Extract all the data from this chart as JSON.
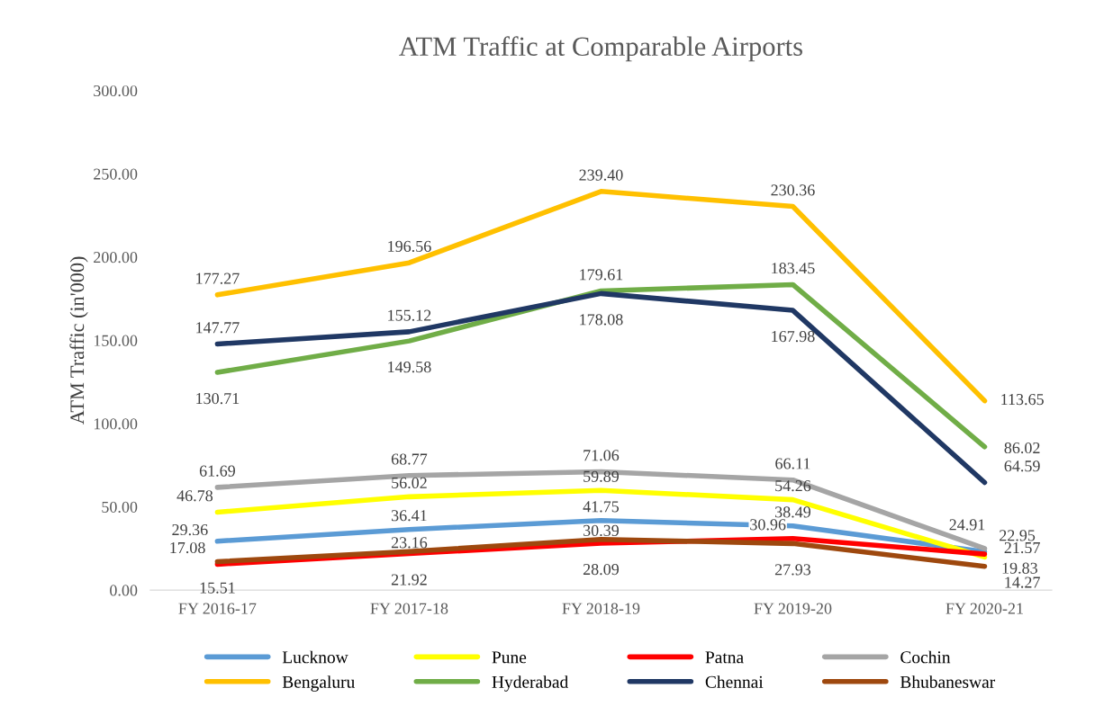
{
  "chart_data": {
    "type": "line",
    "title": "ATM Traffic at Comparable Airports",
    "ylabel": "ATM Traffic (in'000)",
    "categories": [
      "FY 2016-17",
      "FY 2017-18",
      "FY 2018-19",
      "FY 2019-20",
      "FY 2020-21"
    ],
    "series": [
      {
        "name": "Lucknow",
        "color": "#5b9bd5",
        "values": [
          29.36,
          36.41,
          41.75,
          38.49,
          22.95
        ],
        "value_labels": [
          "29.36",
          "36.41",
          "41.75",
          "38.49",
          "22.95"
        ]
      },
      {
        "name": "Pune",
        "color": "#ffff00",
        "values": [
          46.78,
          56.02,
          59.89,
          54.26,
          19.83
        ],
        "value_labels": [
          "46.78",
          "56.02",
          "59.89",
          "54.26",
          "19.83"
        ]
      },
      {
        "name": "Patna",
        "color": "#ff0000",
        "values": [
          15.51,
          21.92,
          28.09,
          30.96,
          21.57
        ],
        "value_labels": [
          "15.51",
          "21.92",
          "28.09",
          "30.96",
          "21.57"
        ]
      },
      {
        "name": "Cochin",
        "color": "#a5a5a5",
        "values": [
          61.69,
          68.77,
          71.06,
          66.11,
          24.91
        ],
        "value_labels": [
          "61.69",
          "68.77",
          "71.06",
          "66.11",
          "24.91"
        ]
      },
      {
        "name": "Bengaluru",
        "color": "#ffc000",
        "values": [
          177.27,
          196.56,
          239.4,
          230.36,
          113.65
        ],
        "value_labels": [
          "177.27",
          "196.56",
          "239.40",
          "230.36",
          "113.65"
        ]
      },
      {
        "name": "Hyderabad",
        "color": "#70ad47",
        "values": [
          130.71,
          149.58,
          179.61,
          183.45,
          86.02
        ],
        "value_labels": [
          "130.71",
          "149.58",
          "179.61",
          "183.45",
          "86.02"
        ]
      },
      {
        "name": "Chennai",
        "color": "#203864",
        "values": [
          147.77,
          155.12,
          178.08,
          167.98,
          64.59
        ],
        "value_labels": [
          "147.77",
          "155.12",
          "178.08",
          "167.98",
          "64.59"
        ]
      },
      {
        "name": "Bhubaneswar",
        "color": "#9e480e",
        "values": [
          17.08,
          23.16,
          30.39,
          27.93,
          14.27
        ],
        "value_labels": [
          "17.08",
          "23.16",
          "30.39",
          "27.93",
          "14.27"
        ]
      }
    ],
    "ylim": [
      0,
      300
    ],
    "yticks": [
      {
        "value": 0,
        "label": "0.00"
      },
      {
        "value": 50,
        "label": "50.00"
      },
      {
        "value": 100,
        "label": "100.00"
      },
      {
        "value": 150,
        "label": "150.00"
      },
      {
        "value": 200,
        "label": "200.00"
      },
      {
        "value": 250,
        "label": "250.00"
      },
      {
        "value": 300,
        "label": "300.00"
      }
    ],
    "grid": false,
    "legend": "bottom",
    "marker": "none",
    "line_style": "solid"
  }
}
